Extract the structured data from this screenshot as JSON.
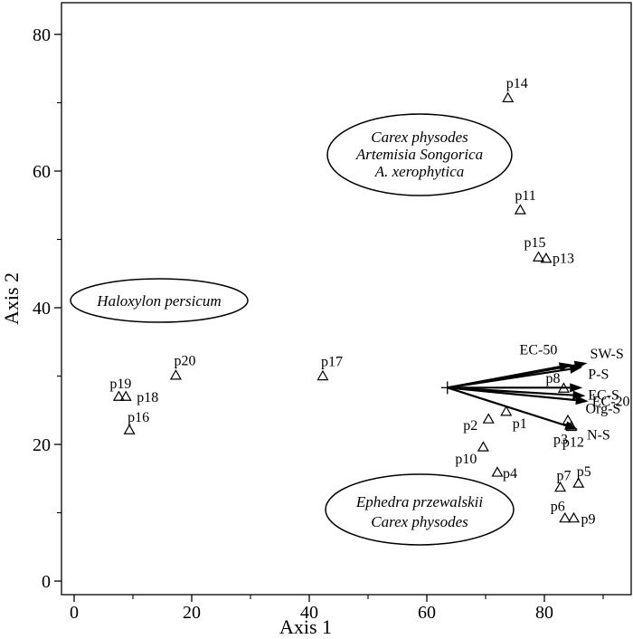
{
  "chart_data": {
    "type": "scatter",
    "xlabel": "Axis 1",
    "ylabel": "Axis 2",
    "xlim": [
      -1,
      92
    ],
    "ylim": [
      -1,
      84
    ],
    "xticks": [
      0,
      20,
      40,
      60,
      80
    ],
    "yticks": [
      0,
      20,
      40,
      60,
      80
    ],
    "tick_labels": {
      "x": [
        "0",
        "20",
        "40",
        "60",
        "80"
      ],
      "y": [
        "0",
        "20",
        "40",
        "60",
        "80"
      ]
    },
    "grid": false,
    "marker": "triangle",
    "points": [
      {
        "label": "p1",
        "x": 73.5,
        "y": 24.8
      },
      {
        "label": "p2",
        "x": 70.5,
        "y": 23.7
      },
      {
        "label": "p3",
        "x": 84.0,
        "y": 23.5
      },
      {
        "label": "p4",
        "x": 72.0,
        "y": 15.9
      },
      {
        "label": "p5",
        "x": 85.8,
        "y": 14.3
      },
      {
        "label": "p6",
        "x": 83.5,
        "y": 9.2
      },
      {
        "label": "p7",
        "x": 82.7,
        "y": 13.7
      },
      {
        "label": "p8",
        "x": 83.3,
        "y": 28.2
      },
      {
        "label": "p9",
        "x": 85.0,
        "y": 9.2
      },
      {
        "label": "p10",
        "x": 69.6,
        "y": 19.6
      },
      {
        "label": "p11",
        "x": 75.9,
        "y": 54.3
      },
      {
        "label": "p12",
        "x": 84.6,
        "y": 22.6
      },
      {
        "label": "p13",
        "x": 80.3,
        "y": 47.2
      },
      {
        "label": "p14",
        "x": 73.8,
        "y": 70.7
      },
      {
        "label": "p15",
        "x": 79.0,
        "y": 47.4
      },
      {
        "label": "p16",
        "x": 9.4,
        "y": 22.1
      },
      {
        "label": "p17",
        "x": 42.3,
        "y": 30.0
      },
      {
        "label": "p18",
        "x": 8.8,
        "y": 27.0
      },
      {
        "label": "p19",
        "x": 7.6,
        "y": 27.0
      },
      {
        "label": "p20",
        "x": 17.3,
        "y": 30.1
      }
    ],
    "vectors_origin": {
      "x": 63.5,
      "y": 28.3
    },
    "vectors": [
      {
        "label": "EC-50",
        "x": 84.7,
        "y": 31.7
      },
      {
        "label": "SW-S",
        "x": 87.3,
        "y": 31.9
      },
      {
        "label": "P-S",
        "x": 86.5,
        "y": 31.3
      },
      {
        "label": "EC-S",
        "x": 86.5,
        "y": 28.3
      },
      {
        "label": "EC-20",
        "x": 87.5,
        "y": 26.3
      },
      {
        "label": "Org-S",
        "x": 87.0,
        "y": 27.1
      },
      {
        "label": "N-S",
        "x": 85.7,
        "y": 22.2
      }
    ],
    "groups": [
      {
        "lines": [
          "Haloxylon persicum"
        ]
      },
      {
        "lines": [
          "Carex physodes",
          "Artemisia Songorica",
          "A. xerophytica"
        ]
      },
      {
        "lines": [
          "Ephedra przewalskii",
          "Carex physodes"
        ]
      }
    ]
  }
}
